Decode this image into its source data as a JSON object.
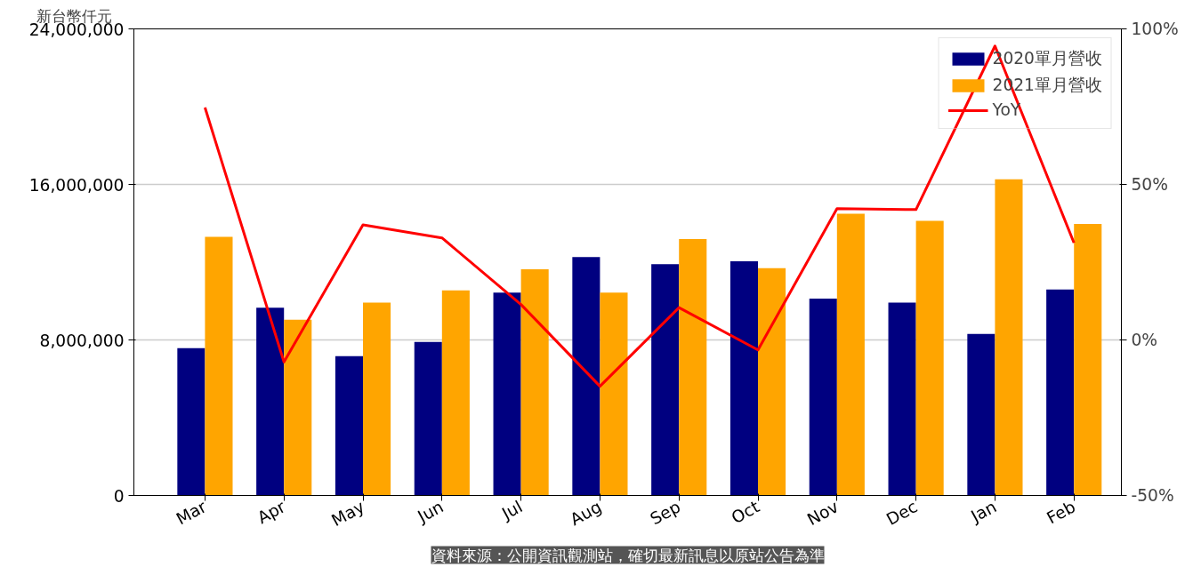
{
  "chart_data": {
    "type": "bar",
    "ylabel": "新台幣仟元",
    "categories": [
      "Mar",
      "Apr",
      "May",
      "Jun",
      "Jul",
      "Aug",
      "Sep",
      "Oct",
      "Nov",
      "Dec",
      "Jan",
      "Feb"
    ],
    "series": [
      {
        "name": "2020單月營收",
        "color": "#000080",
        "values": [
          7580000,
          9660000,
          7170000,
          7900000,
          10440000,
          12260000,
          11900000,
          12050000,
          10130000,
          9920000,
          8310000,
          10600000
        ]
      },
      {
        "name": "2021單月營收",
        "color": "#ffa500",
        "values": [
          13300000,
          9040000,
          9920000,
          10550000,
          11640000,
          10440000,
          13190000,
          11690000,
          14490000,
          14130000,
          16260000,
          13970000
        ]
      },
      {
        "name": "YoY",
        "type": "line",
        "axis": "y2",
        "color": "#ff0000",
        "values": [
          74.7,
          -7.1,
          37.0,
          32.8,
          11.4,
          -14.9,
          10.4,
          -3.2,
          42.2,
          41.9,
          94.5,
          31.2
        ]
      }
    ],
    "ylim": [
      0,
      24000000
    ],
    "yticks": [
      {
        "value": 0,
        "label": "0"
      },
      {
        "value": 8000000,
        "label": "8,000,000"
      },
      {
        "value": 16000000,
        "label": "16,000,000"
      },
      {
        "value": 24000000,
        "label": "24,000,000"
      }
    ],
    "y2lim": [
      -50,
      100
    ],
    "y2ticks": [
      {
        "value": -50,
        "label": "-50%"
      },
      {
        "value": 0,
        "label": "0%"
      },
      {
        "value": 50,
        "label": "50%"
      },
      {
        "value": 100,
        "label": "100%"
      }
    ],
    "grid": "y",
    "legend": "top right",
    "annotations": [
      "資料來源：公開資訊觀測站，確切最新訊息以原站公告為準"
    ]
  }
}
